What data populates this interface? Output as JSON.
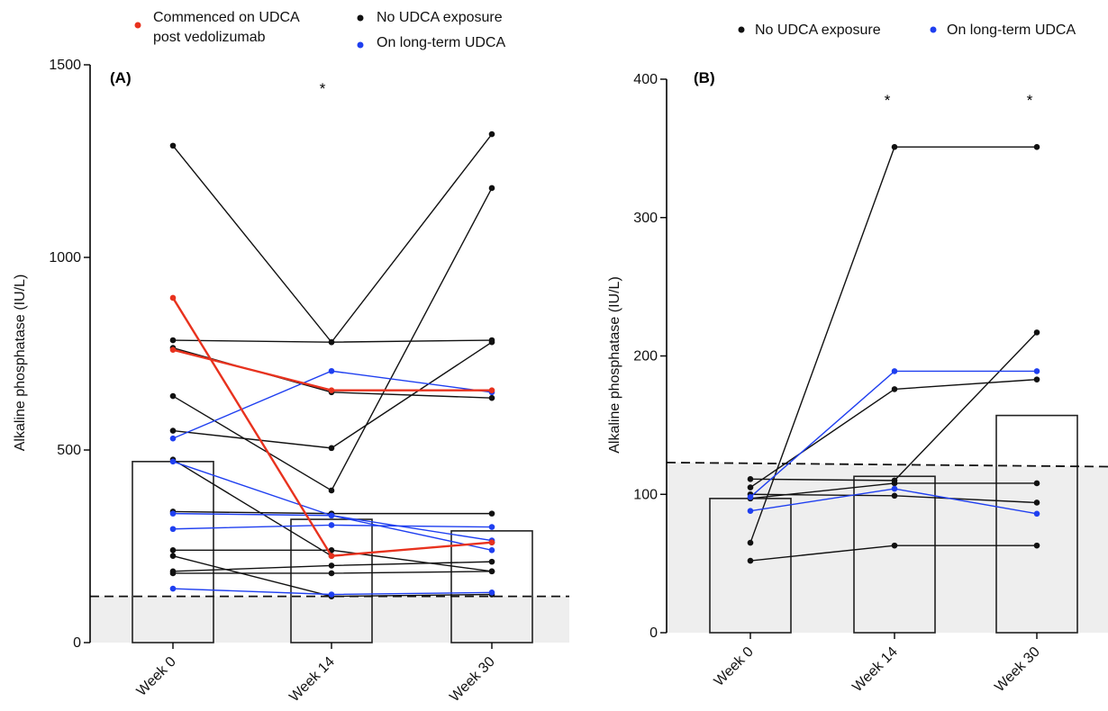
{
  "colors": {
    "commenced": "#e8321e",
    "no_udca": "#111111",
    "long_term": "#1f3ff0",
    "reference_band": "#eeeeee",
    "axis": "#000000"
  },
  "legend_a": [
    {
      "key": "commenced",
      "lines": [
        "Commenced on UDCA",
        "post vedolizumab"
      ]
    },
    {
      "key": "no_udca",
      "lines": [
        "No UDCA exposure"
      ]
    },
    {
      "key": "long_term",
      "lines": [
        "On long-term UDCA"
      ]
    }
  ],
  "legend_b": [
    {
      "key": "no_udca",
      "lines": [
        "No UDCA exposure"
      ]
    },
    {
      "key": "long_term",
      "lines": [
        "On long-term UDCA"
      ]
    }
  ],
  "chart_data": [
    {
      "panel": "(A)",
      "type": "line",
      "x_categories": [
        "Week 0",
        "Week 14",
        "Week 30"
      ],
      "ylabel": "Alkaline phosphatase (IU/L)",
      "ylim": [
        0,
        1500
      ],
      "yticks": [
        0,
        500,
        1000,
        1500
      ],
      "bar_values": [
        470,
        320,
        290
      ],
      "reference_line": 120,
      "significance": [
        "",
        "*",
        ""
      ],
      "patients": [
        {
          "group": "commenced",
          "values": [
            895,
            225,
            260
          ]
        },
        {
          "group": "commenced",
          "values": [
            760,
            655,
            655
          ]
        },
        {
          "group": "no_udca",
          "values": [
            1290,
            780,
            1320
          ]
        },
        {
          "group": "no_udca",
          "values": [
            785,
            780,
            785
          ]
        },
        {
          "group": "no_udca",
          "values": [
            765,
            650,
            635
          ]
        },
        {
          "group": "no_udca",
          "values": [
            640,
            395,
            1180
          ]
        },
        {
          "group": "no_udca",
          "values": [
            550,
            505,
            780
          ]
        },
        {
          "group": "no_udca",
          "values": [
            475,
            225,
            260
          ]
        },
        {
          "group": "no_udca",
          "values": [
            340,
            335,
            335
          ]
        },
        {
          "group": "no_udca",
          "values": [
            240,
            240,
            185
          ]
        },
        {
          "group": "no_udca",
          "values": [
            225,
            120,
            125
          ]
        },
        {
          "group": "no_udca",
          "values": [
            185,
            200,
            210
          ]
        },
        {
          "group": "no_udca",
          "values": [
            180,
            180,
            185
          ]
        },
        {
          "group": "long_term",
          "values": [
            530,
            705,
            650
          ]
        },
        {
          "group": "long_term",
          "values": [
            470,
            330,
            240
          ]
        },
        {
          "group": "long_term",
          "values": [
            335,
            330,
            265
          ]
        },
        {
          "group": "long_term",
          "values": [
            295,
            305,
            300
          ]
        },
        {
          "group": "long_term",
          "values": [
            140,
            125,
            130
          ]
        }
      ]
    },
    {
      "panel": "(B)",
      "type": "line",
      "x_categories": [
        "Week 0",
        "Week 14",
        "Week 30"
      ],
      "ylabel": "Alkaline phosphatase (IU/L)",
      "ylim": [
        0,
        400
      ],
      "yticks": [
        0,
        100,
        200,
        300,
        400
      ],
      "bar_values": [
        97,
        113,
        157
      ],
      "reference_line": [
        123,
        120
      ],
      "significance": [
        "",
        "*",
        "*"
      ],
      "patients": [
        {
          "group": "no_udca",
          "values": [
            65,
            351,
            351
          ]
        },
        {
          "group": "no_udca",
          "values": [
            111,
            110,
            217
          ]
        },
        {
          "group": "no_udca",
          "values": [
            105,
            176,
            183
          ]
        },
        {
          "group": "no_udca",
          "values": [
            97,
            108,
            108
          ]
        },
        {
          "group": "no_udca",
          "values": [
            100,
            99,
            94
          ]
        },
        {
          "group": "no_udca",
          "values": [
            52,
            63,
            63
          ]
        },
        {
          "group": "long_term",
          "values": [
            98,
            189,
            189
          ]
        },
        {
          "group": "long_term",
          "values": [
            88,
            104,
            86
          ]
        }
      ]
    }
  ]
}
